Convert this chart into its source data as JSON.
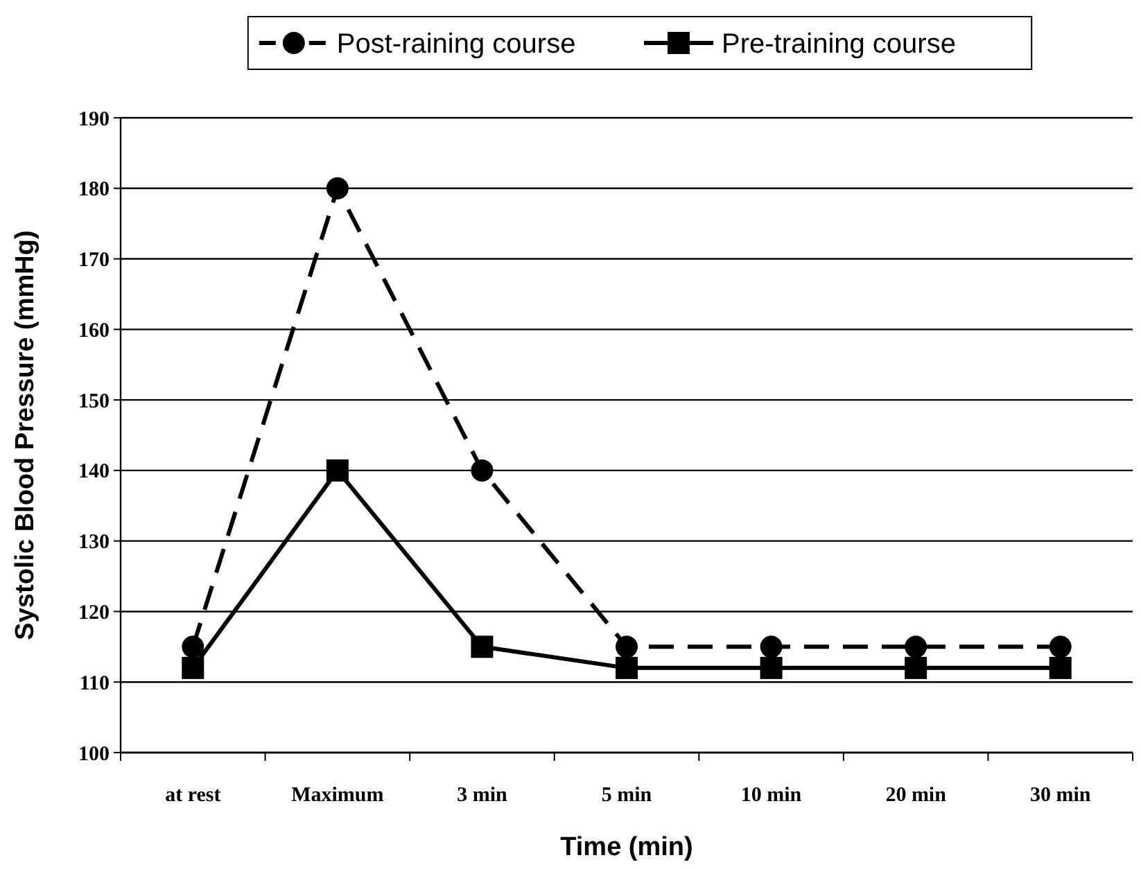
{
  "chart_data": {
    "type": "line",
    "xlabel": "Time (min)",
    "ylabel": "Systolic Blood Pressure (mmHg)",
    "categories": [
      "at rest",
      "Maximum",
      "3 min",
      "5 min",
      "10 min",
      "20 min",
      "30 min"
    ],
    "series": [
      {
        "name": "Post-raining course",
        "color": "#000000",
        "marker": "circle",
        "line_style": "dashed",
        "values": [
          115,
          180,
          140,
          115,
          115,
          115,
          115
        ]
      },
      {
        "name": "Pre-training course",
        "color": "#000000",
        "marker": "square",
        "line_style": "solid",
        "values": [
          112,
          140,
          115,
          112,
          112,
          112,
          112
        ]
      }
    ],
    "ylim": [
      100,
      190
    ],
    "yticks": [
      100,
      110,
      120,
      130,
      140,
      150,
      160,
      170,
      180,
      190
    ],
    "grid": "y",
    "legend": "top"
  }
}
